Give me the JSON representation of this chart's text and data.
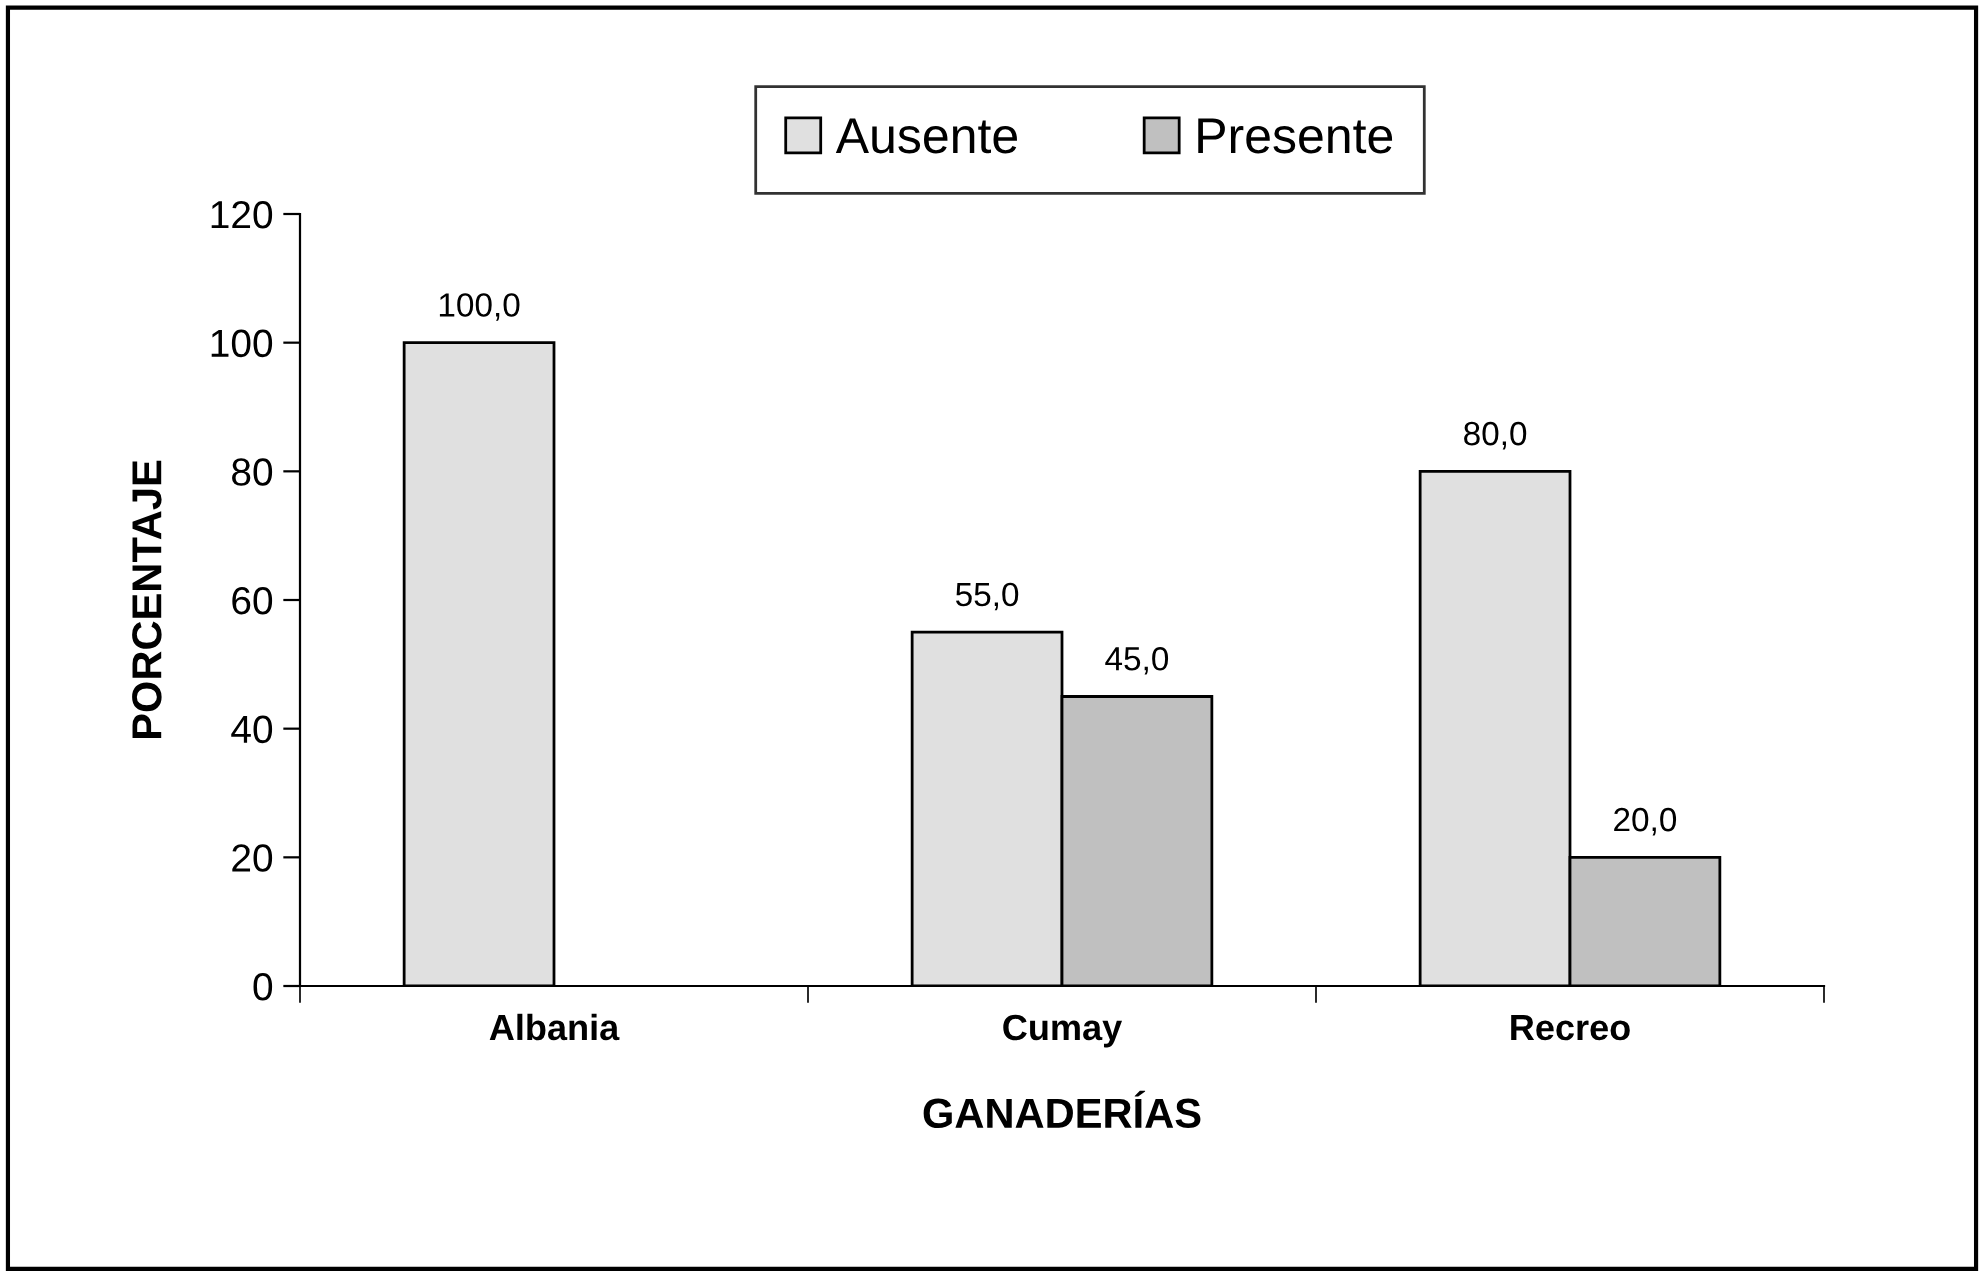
{
  "chart_data": {
    "type": "bar",
    "xlabel": "GANADERÍAS",
    "ylabel": "PORCENTAJE",
    "categories": [
      "Albania",
      "Cumay",
      "Recreo"
    ],
    "series": [
      {
        "name": "Ausente",
        "color": "#e0e0e0",
        "values": [
          100,
          55,
          80
        ],
        "value_labels": [
          "100,0",
          "55,0",
          "80,0"
        ]
      },
      {
        "name": "Presente",
        "color": "#c0c0c0",
        "values": [
          null,
          45,
          20
        ],
        "value_labels": [
          null,
          "45,0",
          "20,0"
        ]
      }
    ],
    "ylim": [
      0,
      120
    ],
    "yticks": [
      0,
      20,
      40,
      60,
      80,
      100,
      120
    ],
    "grid": false,
    "legend": "top"
  }
}
